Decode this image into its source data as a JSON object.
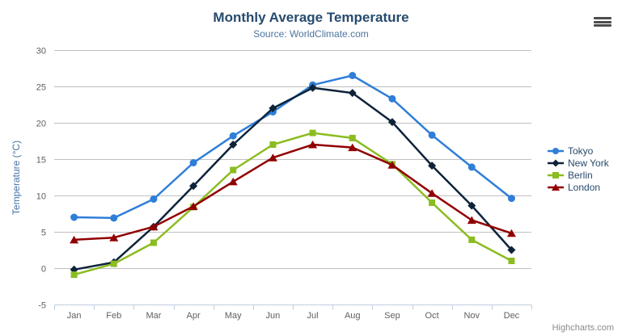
{
  "chart": {
    "title": "Monthly Average Temperature",
    "subtitle": "Source: WorldClimate.com",
    "credits": "Highcharts.com",
    "context_menu_icon": "hamburger"
  },
  "colors": {
    "title": "#274b6d",
    "subtitle": "#4d759e",
    "axis_title": "#4572a7",
    "axis_labels": "#606060",
    "grid_line": "#c0c0c0",
    "axis_line": "#c0d0e0",
    "legend_text": "#274b6d",
    "credits_text": "#8a8a8a"
  },
  "chart_data": {
    "type": "line",
    "title": "Monthly Average Temperature",
    "subtitle": "Source: WorldClimate.com",
    "xlabel": "",
    "ylabel": "Temperature (°C)",
    "ylim": [
      -5,
      30
    ],
    "ytick_interval": 5,
    "grid": true,
    "legend_position": "right",
    "categories": [
      "Jan",
      "Feb",
      "Mar",
      "Apr",
      "May",
      "Jun",
      "Jul",
      "Aug",
      "Sep",
      "Oct",
      "Nov",
      "Dec"
    ],
    "series": [
      {
        "name": "Tokyo",
        "color": "#2f7ed8",
        "marker": "circle",
        "values": [
          7.0,
          6.9,
          9.5,
          14.5,
          18.2,
          21.5,
          25.2,
          26.5,
          23.3,
          18.3,
          13.9,
          9.6
        ]
      },
      {
        "name": "New York",
        "color": "#0d233a",
        "marker": "diamond",
        "values": [
          -0.2,
          0.8,
          5.7,
          11.3,
          17.0,
          22.0,
          24.8,
          24.1,
          20.1,
          14.1,
          8.6,
          2.5
        ]
      },
      {
        "name": "Berlin",
        "color": "#8bbc21",
        "marker": "square",
        "values": [
          -0.9,
          0.6,
          3.5,
          8.4,
          13.5,
          17.0,
          18.6,
          17.9,
          14.3,
          9.0,
          3.9,
          1.0
        ]
      },
      {
        "name": "London",
        "color": "#910000",
        "marker": "triangle",
        "values": [
          3.9,
          4.2,
          5.7,
          8.5,
          11.9,
          15.2,
          17.0,
          16.6,
          14.2,
          10.3,
          6.6,
          4.8
        ]
      }
    ]
  }
}
